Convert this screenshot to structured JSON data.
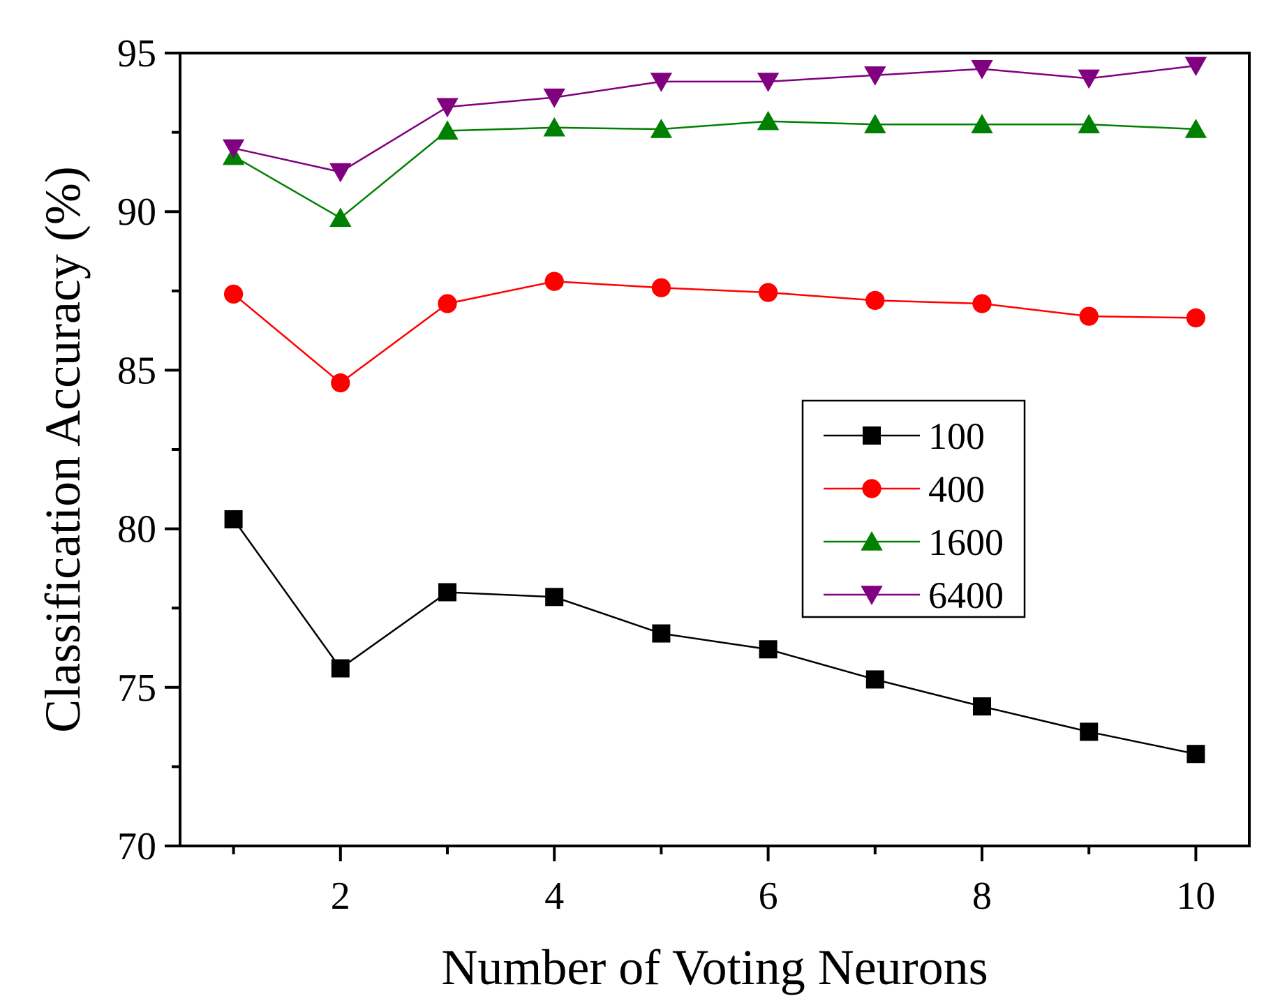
{
  "chart_data": {
    "type": "line",
    "title": "",
    "xlabel": "Number of Voting Neurons",
    "ylabel": "Classification Accuracy (%)",
    "xlim": [
      0.5,
      10.5
    ],
    "ylim": [
      70,
      95
    ],
    "x_ticks": [
      2,
      4,
      6,
      8,
      10
    ],
    "x_minor_ticks": [
      1,
      3,
      5,
      7,
      9
    ],
    "y_ticks": [
      70,
      75,
      80,
      85,
      90,
      95
    ],
    "legend_position": "center-right",
    "x": [
      1,
      2,
      3,
      4,
      5,
      6,
      7,
      8,
      9,
      10
    ],
    "series": [
      {
        "name": "100",
        "color": "#000000",
        "marker": "square",
        "values": [
          80.3,
          75.6,
          78.0,
          77.85,
          76.7,
          76.2,
          75.25,
          74.4,
          73.6,
          72.9
        ]
      },
      {
        "name": "400",
        "color": "#ff0000",
        "marker": "circle",
        "values": [
          87.4,
          84.6,
          87.1,
          87.8,
          87.6,
          87.45,
          87.2,
          87.1,
          86.7,
          86.65
        ]
      },
      {
        "name": "1600",
        "color": "#008000",
        "marker": "triangle-up",
        "values": [
          91.75,
          89.8,
          92.55,
          92.65,
          92.6,
          92.85,
          92.75,
          92.75,
          92.75,
          92.6
        ]
      },
      {
        "name": "6400",
        "color": "#800080",
        "marker": "triangle-down",
        "values": [
          92.0,
          91.25,
          93.3,
          93.6,
          94.1,
          94.1,
          94.3,
          94.5,
          94.2,
          94.6
        ]
      }
    ]
  }
}
